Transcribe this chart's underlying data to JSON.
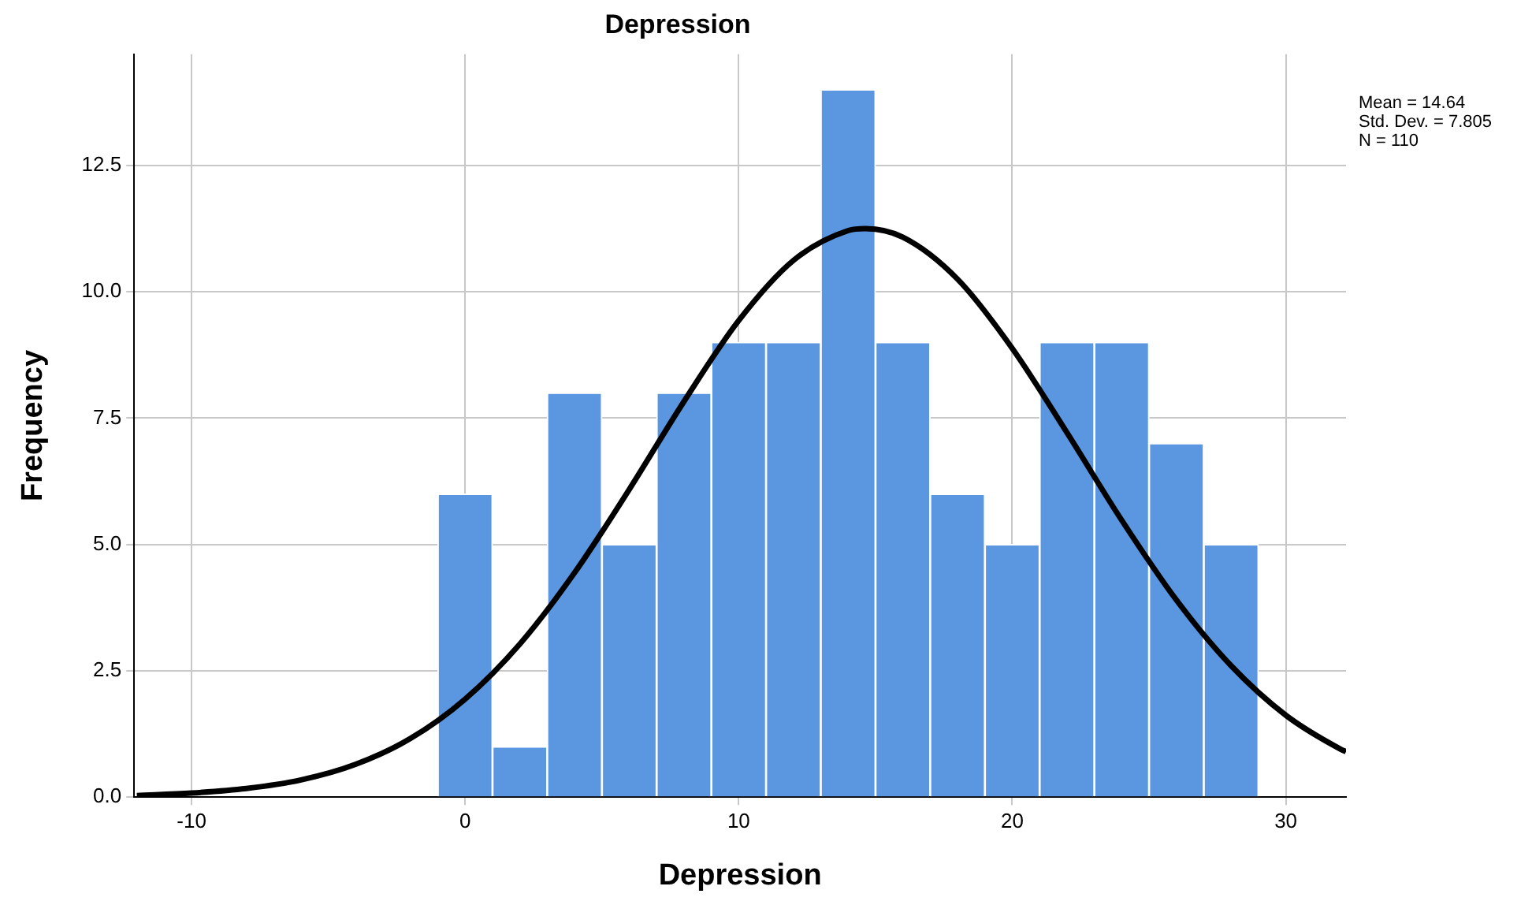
{
  "chart_data": {
    "type": "histogram",
    "title": "Depression",
    "xlabel": "Depression",
    "ylabel": "Frequency",
    "bins": [
      -1,
      1,
      3,
      5,
      7,
      9,
      11,
      13,
      15,
      17,
      19,
      21,
      23,
      25,
      27,
      29
    ],
    "values": [
      6,
      1,
      8,
      5,
      8,
      9,
      9,
      14,
      9,
      6,
      5,
      9,
      9,
      7,
      5
    ],
    "color": "#5b97e1",
    "series": [
      {
        "type": "line",
        "color": "#000000",
        "x": [
          -12,
          -10,
          -8,
          -6,
          -4,
          -2,
          0,
          2,
          4,
          6,
          8,
          10,
          12,
          14,
          14.64,
          16,
          18,
          20,
          22,
          24,
          26,
          28,
          30,
          32,
          32.2
        ],
        "values": [
          0.03,
          0.08,
          0.17,
          0.34,
          0.65,
          1.16,
          1.94,
          3.03,
          4.44,
          6.09,
          7.83,
          9.43,
          10.62,
          11.21,
          11.25,
          11.08,
          10.25,
          8.88,
          7.21,
          5.48,
          3.9,
          2.6,
          1.62,
          0.95,
          0.9
        ]
      }
    ],
    "xlim": [
      -12.1,
      32.2
    ],
    "xticks": [
      -10,
      0,
      10,
      20,
      30
    ],
    "ylim": [
      0,
      14.7
    ],
    "yticks": [
      {
        "value": 0,
        "label": "0.0"
      },
      {
        "value": 2.5,
        "label": "2.5"
      },
      {
        "value": 5,
        "label": "5.0"
      },
      {
        "value": 7.5,
        "label": "7.5"
      },
      {
        "value": 10,
        "label": "10.0"
      },
      {
        "value": 12.5,
        "label": "12.5"
      }
    ],
    "grid": true,
    "legend": false,
    "annotations": [
      "Mean = 14.64",
      "Std. Dev. = 7.805",
      "N = 110"
    ]
  }
}
